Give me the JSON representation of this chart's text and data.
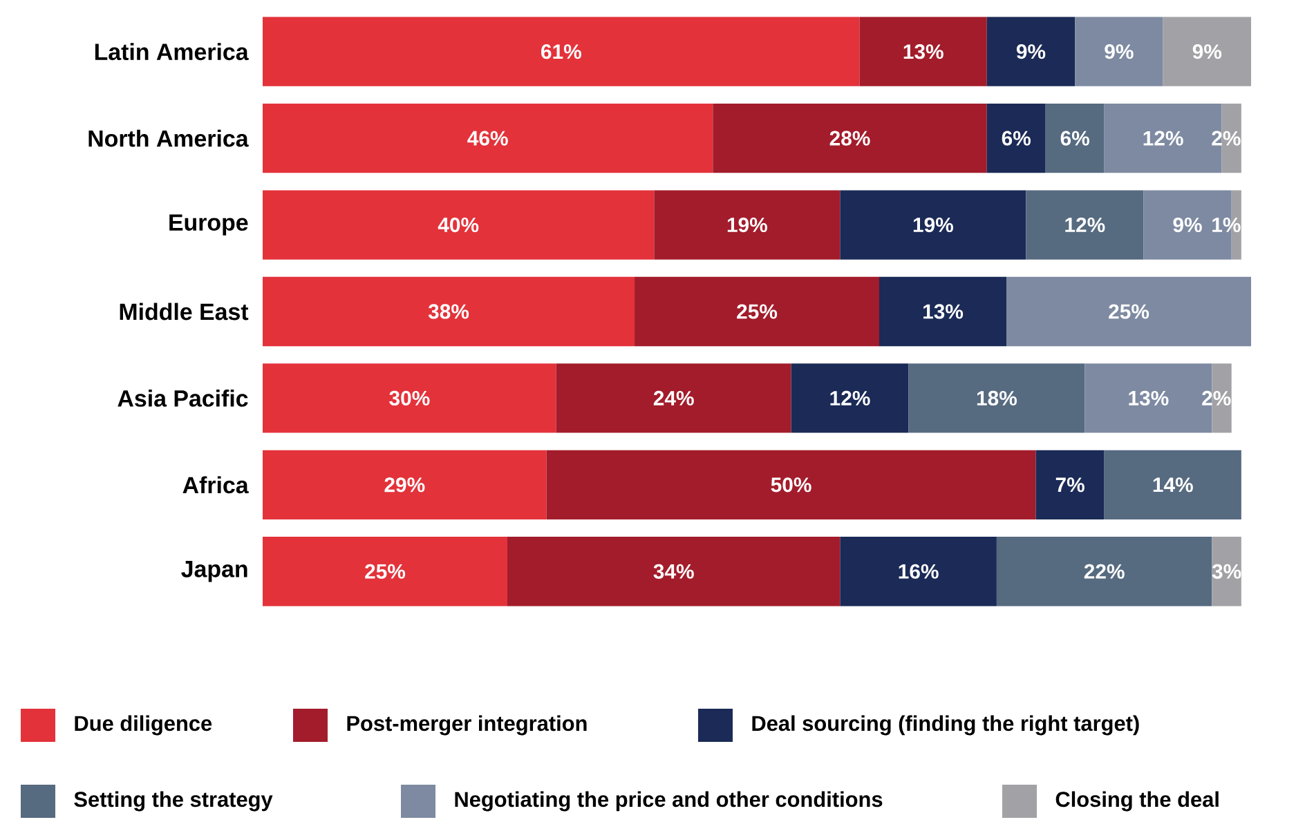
{
  "chart_data": {
    "type": "bar",
    "orientation": "horizontal",
    "stacked": true,
    "legend": "bottom",
    "categories": [
      "Latin America",
      "North America",
      "Europe",
      "Middle East",
      "Asia Pacific",
      "Africa",
      "Japan"
    ],
    "series": [
      {
        "name": "Due diligence",
        "color": "#e3323a",
        "values": [
          61,
          46,
          40,
          38,
          30,
          29,
          25
        ],
        "value_labels": [
          "61%",
          "46%",
          "40%",
          "38%",
          "30%",
          "29%",
          "25%"
        ]
      },
      {
        "name": "Post-merger integration",
        "color": "#a31c2b",
        "values": [
          13,
          28,
          19,
          25,
          24,
          50,
          34
        ],
        "value_labels": [
          "13%",
          "28%",
          "19%",
          "25%",
          "24%",
          "50%",
          "34%"
        ]
      },
      {
        "name": "Deal sourcing (finding the right target)",
        "color": "#1b2a56",
        "values": [
          9,
          6,
          19,
          13,
          12,
          7,
          16
        ],
        "value_labels": [
          "9%",
          "6%",
          "19%",
          "13%",
          "12%",
          "7%",
          "16%"
        ]
      },
      {
        "name": "Setting the strategy",
        "color": "#566a80",
        "values": [
          null,
          6,
          12,
          null,
          18,
          14,
          22
        ],
        "value_labels": [
          null,
          "6%",
          "12%",
          null,
          "18%",
          "14%",
          "22%"
        ]
      },
      {
        "name": "Negotiating the price and other conditions",
        "color": "#7d8aa1",
        "values": [
          9,
          12,
          9,
          25,
          13,
          null,
          null
        ],
        "value_labels": [
          "9%",
          "12%",
          "9%",
          "25%",
          "13%",
          null,
          null
        ]
      },
      {
        "name": "Closing the deal",
        "color": "#a2a2a6",
        "values": [
          9,
          2,
          1,
          null,
          2,
          null,
          3
        ],
        "value_labels": [
          "9%",
          "2%",
          "1%",
          null,
          "2%",
          null,
          "3%"
        ]
      }
    ]
  }
}
